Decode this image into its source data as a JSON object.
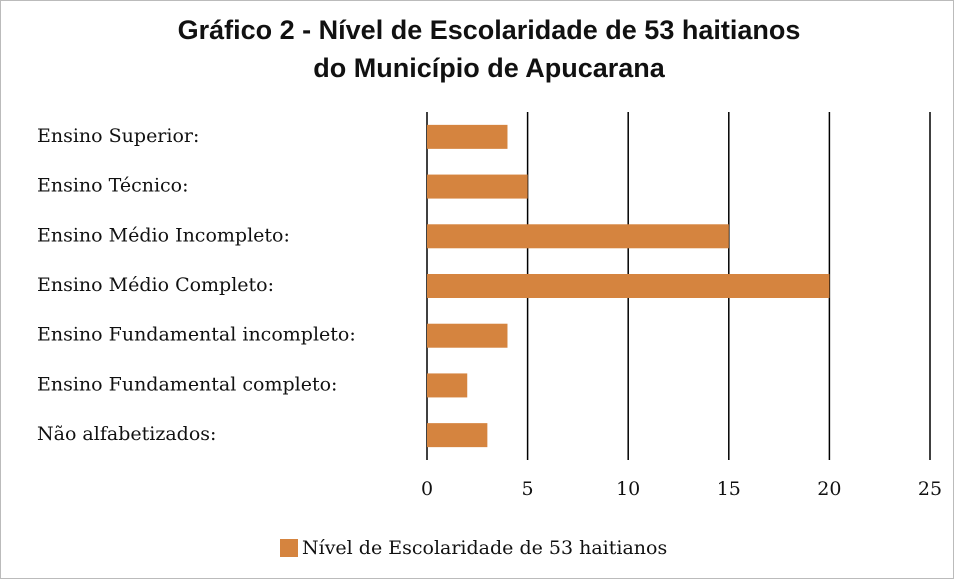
{
  "chart_data": {
    "type": "barh",
    "title": [
      "Gráfico 2 - Nível de Escolaridade de 53 haitianos",
      "do Município de Apucarana"
    ],
    "categories": [
      "Ensino Superior:",
      "Ensino Técnico:",
      "Ensino Médio Incompleto:",
      "Ensino Médio Completo:",
      "Ensino Fundamental incompleto:",
      "Ensino Fundamental completo:",
      "Não alfabetizados:"
    ],
    "series": [
      {
        "name": "Nível de Escolaridade de 53 haitianos",
        "color": "#d5843f",
        "values": [
          4,
          5,
          15,
          20,
          4,
          2,
          3
        ]
      }
    ],
    "xlim": [
      0,
      25
    ],
    "xticks": [
      0,
      5,
      10,
      15,
      20,
      25
    ],
    "grid": true,
    "legend": "bottom"
  }
}
